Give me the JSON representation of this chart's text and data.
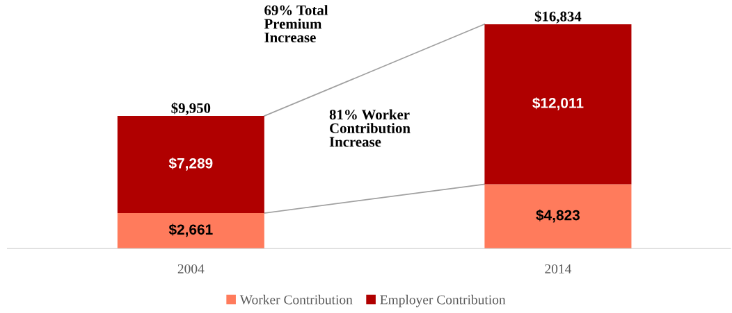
{
  "chart_data": {
    "type": "bar",
    "stacked": true,
    "categories": [
      "2004",
      "2014"
    ],
    "series": [
      {
        "name": "Worker Contribution",
        "color": "#ff7b5c",
        "values": [
          2661,
          4823
        ],
        "value_labels": [
          "$2,661",
          "$4,823"
        ]
      },
      {
        "name": "Employer Contribution",
        "color": "#b00000",
        "values": [
          7289,
          12011
        ],
        "value_labels": [
          "$7,289",
          "$12,011"
        ]
      }
    ],
    "totals": [
      "$9,950",
      "$16,834"
    ],
    "annotations": [
      "69% Total\nPremium\nIncrease",
      "81% Worker\nContribution\nIncrease"
    ],
    "legend": "bottom",
    "grid": false
  }
}
